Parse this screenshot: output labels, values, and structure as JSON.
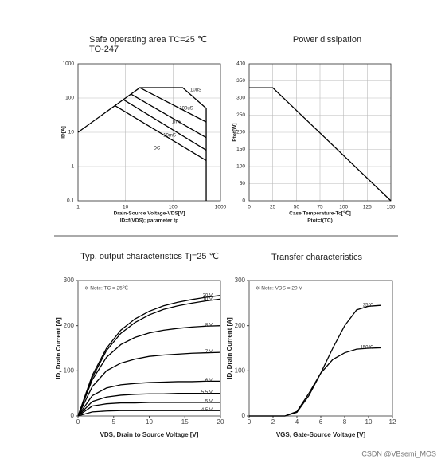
{
  "chart_data": [
    {
      "type": "line",
      "title": "Safe operating area TC=25 ℃",
      "subtitle": "TO-247",
      "xlabel": "Drain-Source Voltage-VDS[V]",
      "xnote": "ID=f(VDS); parameter tp",
      "ylabel": "ID[A]",
      "xscale": "log",
      "yscale": "log",
      "xlim": [
        1,
        1000
      ],
      "ylim": [
        0.1,
        1000
      ],
      "xticks": [
        1,
        10,
        100,
        1000
      ],
      "yticks": [
        0.1,
        1,
        10,
        100,
        1000
      ],
      "grid": true,
      "series": [
        {
          "name": "10uS",
          "color": "#000000",
          "x": [
            1,
            20,
            160,
            500,
            500
          ],
          "values": [
            10,
            200,
            200,
            50,
            0.1
          ]
        },
        {
          "name": "100uS",
          "color": "#000000",
          "x": [
            20,
            500
          ],
          "values": [
            200,
            20
          ]
        },
        {
          "name": "1mS",
          "color": "#000000",
          "x": [
            13,
            500
          ],
          "values": [
            130,
            7
          ]
        },
        {
          "name": "10mS",
          "color": "#000000",
          "x": [
            9,
            500
          ],
          "values": [
            90,
            3
          ]
        },
        {
          "name": "DC",
          "color": "#000000",
          "x": [
            6,
            500
          ],
          "values": [
            60,
            1.5
          ]
        }
      ]
    },
    {
      "type": "line",
      "title": "Power dissipation",
      "xlabel": "Case Temperature-Tc[℃]",
      "xnote": "Ptot=f(TC)",
      "ylabel": "Ptot[W]",
      "xlim": [
        0,
        150
      ],
      "ylim": [
        0,
        400
      ],
      "xticks": [
        0,
        25,
        50,
        75,
        100,
        125,
        150
      ],
      "yticks": [
        0,
        50,
        100,
        150,
        200,
        250,
        300,
        350,
        400
      ],
      "grid": true,
      "series": [
        {
          "name": "Ptot",
          "color": "#000000",
          "x": [
            0,
            25,
            150
          ],
          "values": [
            330,
            330,
            0
          ]
        }
      ]
    },
    {
      "type": "line",
      "title": "Typ. output characteristics Tj=25 ℃",
      "note": "※ Note: TC = 25℃",
      "xlabel": "VDS, Drain to Source Voltage [V]",
      "ylabel": "ID, Drain Current [A]",
      "xlim": [
        0,
        20
      ],
      "ylim": [
        0,
        300
      ],
      "xticks": [
        0,
        5,
        10,
        15,
        20
      ],
      "yticks": [
        0,
        100,
        200,
        300
      ],
      "grid": false,
      "x": [
        0,
        2,
        4,
        6,
        8,
        10,
        12,
        14,
        16,
        18,
        20
      ],
      "series": [
        {
          "name": "20 V",
          "color": "#000000",
          "values": [
            0,
            90,
            150,
            190,
            215,
            232,
            244,
            252,
            258,
            263,
            267
          ]
        },
        {
          "name": "10 V",
          "color": "#000000",
          "values": [
            0,
            85,
            145,
            183,
            207,
            224,
            236,
            244,
            250,
            255,
            259
          ]
        },
        {
          "name": "8 V",
          "color": "#000000",
          "values": [
            0,
            80,
            130,
            158,
            174,
            184,
            190,
            194,
            197,
            199,
            200
          ]
        },
        {
          "name": "7 V",
          "color": "#000000",
          "values": [
            0,
            65,
            100,
            117,
            126,
            132,
            135,
            137,
            139,
            140,
            141
          ]
        },
        {
          "name": "6 V",
          "color": "#000000",
          "values": [
            0,
            45,
            62,
            69,
            72,
            74,
            75,
            76,
            76,
            77,
            77
          ]
        },
        {
          "name": "5.5 V",
          "color": "#000000",
          "values": [
            0,
            32,
            42,
            46,
            48,
            49,
            49,
            50,
            50,
            50,
            50
          ]
        },
        {
          "name": "5 V",
          "color": "#000000",
          "values": [
            0,
            22,
            27,
            29,
            29,
            30,
            30,
            30,
            30,
            30,
            30
          ]
        },
        {
          "name": "4.5 V",
          "color": "#000000",
          "values": [
            0,
            9,
            11,
            12,
            12,
            12,
            12,
            12,
            12,
            12,
            12
          ]
        }
      ]
    },
    {
      "type": "line",
      "title": "Transfer characteristics",
      "note": "※ Note: VDS = 20 V",
      "xlabel": "VGS, Gate-Source Voltage [V]",
      "ylabel": "ID, Drain Current [A]",
      "xlim": [
        0,
        12
      ],
      "ylim": [
        0,
        300
      ],
      "xticks": [
        0,
        2,
        4,
        6,
        8,
        10,
        12
      ],
      "yticks": [
        0,
        100,
        200,
        300
      ],
      "grid": false,
      "x": [
        0,
        3,
        4,
        5,
        6,
        7,
        8,
        9,
        10,
        11
      ],
      "series": [
        {
          "name": "25℃",
          "color": "#000000",
          "values": [
            0,
            0,
            8,
            45,
            95,
            150,
            200,
            235,
            243,
            245
          ]
        },
        {
          "name": "150℃",
          "color": "#000000",
          "values": [
            0,
            0,
            10,
            50,
            95,
            125,
            140,
            148,
            150,
            151
          ]
        }
      ]
    }
  ],
  "watermark": "CSDN @VBsemi_MOS"
}
